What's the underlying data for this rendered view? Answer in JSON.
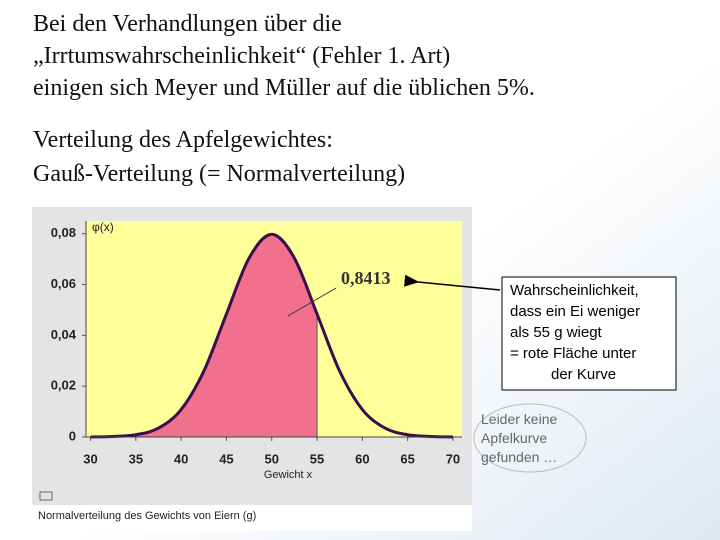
{
  "slide": {
    "lines": [
      "Bei den Verhandlungen über die",
      "„Irrtumswahrscheinlichkeit“ (Fehler 1. Art)",
      "einigen sich Meyer und Müller auf die üblichen 5%.",
      "Verteilung des Apfelgewichtes:",
      "Gauß-Verteilung (= Normalverteilung)"
    ],
    "callout": [
      "Wahrscheinlichkeit,",
      "dass ein Ei weniger",
      "als 55 g wiegt",
      "= rote Fläche unter",
      "der Kurve"
    ],
    "note": [
      "Leider keine",
      "Apfelkurve",
      "gefunden …"
    ]
  },
  "chart_data": {
    "type": "line",
    "y_label": "φ(x)",
    "x_label": "Gewicht x",
    "annotation": "0,8413",
    "caption": "Normalverteilung des Gewichts von Eiern (g)",
    "x": [
      30,
      32.5,
      35,
      37.5,
      40,
      42.5,
      45,
      47.5,
      50,
      52.5,
      55,
      57.5,
      60,
      62.5,
      65,
      67.5,
      70
    ],
    "series": [
      {
        "color": "#3a0d50",
        "values": [
          0.0,
          0.0002,
          0.0009,
          0.0035,
          0.0108,
          0.0259,
          0.0484,
          0.0704,
          0.0798,
          0.0704,
          0.0484,
          0.0259,
          0.0108,
          0.0035,
          0.0009,
          0.0002,
          0.0
        ]
      }
    ],
    "shade_to": 55,
    "shade_color": "#f0708e",
    "background": "#ffff99",
    "xlim": [
      29.5,
      71
    ],
    "xticks": [
      30,
      35,
      40,
      45,
      50,
      55,
      60,
      65,
      70
    ],
    "ylim": [
      0,
      0.085
    ],
    "yticks": [
      0,
      {
        "value": 0.02,
        "label": "0,02"
      },
      {
        "value": 0.04,
        "label": "0,04"
      },
      {
        "value": 0.06,
        "label": "0,06"
      },
      {
        "value": 0.08,
        "label": "0,08"
      }
    ],
    "grid": false
  }
}
